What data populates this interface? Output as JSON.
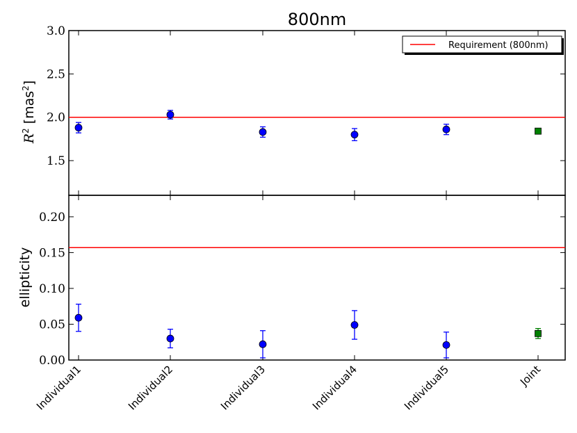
{
  "chart_data": [
    {
      "type": "scatter",
      "title": "800nm",
      "ylabel_main": "R",
      "ylabel_sup": "2",
      "ylabel_unit": " [mas",
      "ylabel_unit_sup": "2",
      "ylabel_close": "]",
      "ylim": [
        1.1,
        3.0
      ],
      "yticks": [
        1.5,
        2.0,
        2.5,
        3.0
      ],
      "ytick_labels": [
        "1.5",
        "2.0",
        "2.5",
        "3.0"
      ],
      "categories": [
        "Individual1",
        "Individual2",
        "Individual3",
        "Individual4",
        "Individual5",
        "Joint"
      ],
      "series": [
        {
          "values": [
            1.88,
            2.03,
            1.83,
            1.8,
            1.86,
            null
          ],
          "errors": [
            0.06,
            0.05,
            0.06,
            0.07,
            0.06,
            null
          ],
          "color": "#0000ff",
          "marker": "circle"
        },
        {
          "values": [
            null,
            null,
            null,
            null,
            null,
            1.84
          ],
          "errors": [
            null,
            null,
            null,
            null,
            null,
            0.01
          ],
          "color": "#008000",
          "marker": "square"
        }
      ],
      "hlines": [
        {
          "y": 2.0,
          "color": "#ff0000"
        }
      ],
      "legend": {
        "label": "Requirement (800nm)",
        "placement": "top-right",
        "color": "#ff0000"
      },
      "grid": false
    },
    {
      "type": "scatter",
      "ylabel": "ellipticity",
      "ylim": [
        0.0,
        0.23
      ],
      "yticks": [
        0.0,
        0.05,
        0.1,
        0.15,
        0.2
      ],
      "ytick_labels": [
        "0.00",
        "0.05",
        "0.10",
        "0.15",
        "0.20"
      ],
      "categories": [
        "Individual1",
        "Individual2",
        "Individual3",
        "Individual4",
        "Individual5",
        "Joint"
      ],
      "series": [
        {
          "values": [
            0.059,
            0.03,
            0.022,
            0.049,
            0.021,
            null
          ],
          "errors": [
            0.019,
            0.013,
            0.019,
            0.02,
            0.018,
            null
          ],
          "color": "#0000ff",
          "marker": "circle"
        },
        {
          "values": [
            null,
            null,
            null,
            null,
            null,
            0.037
          ],
          "errors": [
            null,
            null,
            null,
            null,
            null,
            0.007
          ],
          "color": "#008000",
          "marker": "square"
        }
      ],
      "hlines": [
        {
          "y": 0.157,
          "color": "#ff0000"
        }
      ],
      "grid": false
    }
  ]
}
